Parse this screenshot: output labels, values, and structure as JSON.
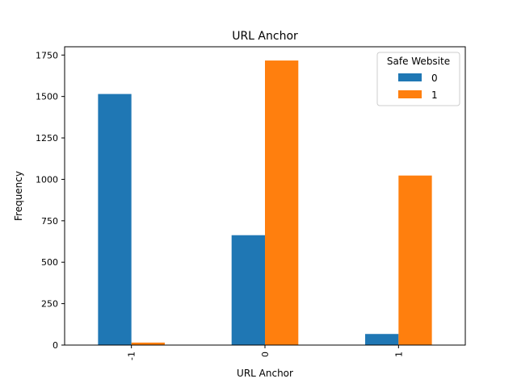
{
  "chart_data": {
    "type": "bar",
    "title": "URL Anchor",
    "xlabel": "URL Anchor",
    "ylabel": "Frequency",
    "categories": [
      "-1",
      "0",
      "1"
    ],
    "series": [
      {
        "name": "0",
        "values": [
          1515,
          663,
          67
        ],
        "color": "#1f77b4"
      },
      {
        "name": "1",
        "values": [
          15,
          1717,
          1023
        ],
        "color": "#ff7f0e"
      }
    ],
    "ylim": [
      0,
      1800
    ],
    "yticks": [
      0,
      250,
      500,
      750,
      1000,
      1250,
      1500,
      1750
    ],
    "legend": {
      "title": "Safe Website",
      "placement": "top-right"
    },
    "grid": false
  }
}
